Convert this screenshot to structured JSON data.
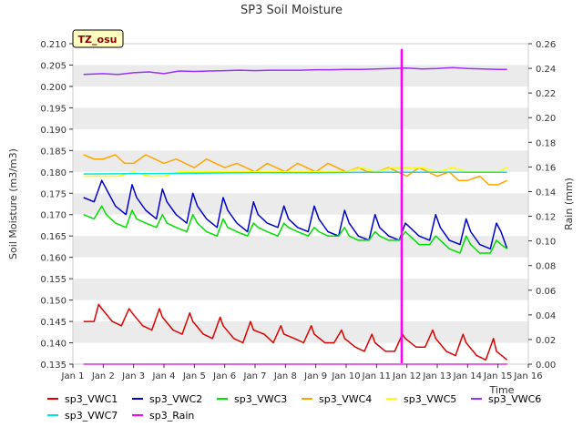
{
  "chart_data": {
    "type": "line",
    "title": "SP3 Soil Moisture",
    "xlabel": "Time",
    "ylabel": "Soil Moisture (m3/m3)",
    "y2label": "Rain (mm)",
    "site_tag": "TZ_osu",
    "xlim": [
      1,
      16
    ],
    "ylim": [
      0.135,
      0.21
    ],
    "y2lim": [
      0.0,
      0.26
    ],
    "x_tick_values": [
      1,
      2,
      3,
      4,
      5,
      6,
      7,
      8,
      9,
      10,
      11,
      12,
      13,
      14,
      15,
      16
    ],
    "x_tick_labels": [
      "Jan 1",
      "Jan 2",
      "Jan 3",
      "Jan 4",
      "Jan 5",
      "Jan 6",
      "Jan 7",
      "Jan 8",
      "Jan 9",
      "Jan 10",
      "Jan 11",
      "Jan 12",
      "Jan 13",
      "Jan 14",
      "Jan 15",
      "Jan 16"
    ],
    "y_tick_labels": [
      "0.135",
      "0.140",
      "0.145",
      "0.150",
      "0.155",
      "0.160",
      "0.165",
      "0.170",
      "0.175",
      "0.180",
      "0.185",
      "0.190",
      "0.195",
      "0.200",
      "0.205",
      "0.210"
    ],
    "y2_tick_labels": [
      "0.00",
      "0.02",
      "0.04",
      "0.06",
      "0.08",
      "0.10",
      "0.12",
      "0.14",
      "0.16",
      "0.18",
      "0.20",
      "0.22",
      "0.24",
      "0.26"
    ],
    "grid": "horizontal bands",
    "legend_position": "bottom",
    "series": [
      {
        "name": "sp3_VWC1",
        "color": "#e00000",
        "axis": "left",
        "x": [
          1.35,
          1.7,
          1.85,
          1.95,
          2.3,
          2.6,
          2.85,
          2.95,
          3.3,
          3.6,
          3.85,
          3.95,
          4.3,
          4.6,
          4.85,
          4.95,
          5.3,
          5.6,
          5.85,
          5.95,
          6.3,
          6.6,
          6.85,
          6.95,
          7.3,
          7.6,
          7.85,
          7.95,
          8.3,
          8.6,
          8.85,
          8.95,
          9.3,
          9.6,
          9.85,
          9.95,
          10.3,
          10.6,
          10.85,
          10.95,
          11.3,
          11.6,
          11.85,
          11.95,
          12.3,
          12.6,
          12.85,
          12.95,
          13.3,
          13.6,
          13.85,
          13.95,
          14.3,
          14.6,
          14.85,
          14.95,
          15.3
        ],
        "y": [
          0.145,
          0.145,
          0.149,
          0.148,
          0.145,
          0.144,
          0.148,
          0.147,
          0.144,
          0.143,
          0.148,
          0.146,
          0.143,
          0.142,
          0.147,
          0.145,
          0.142,
          0.141,
          0.146,
          0.144,
          0.141,
          0.14,
          0.145,
          0.143,
          0.142,
          0.14,
          0.144,
          0.142,
          0.141,
          0.14,
          0.144,
          0.142,
          0.14,
          0.14,
          0.143,
          0.141,
          0.139,
          0.138,
          0.142,
          0.14,
          0.138,
          0.138,
          0.142,
          0.141,
          0.139,
          0.139,
          0.143,
          0.141,
          0.138,
          0.137,
          0.142,
          0.14,
          0.137,
          0.136,
          0.141,
          0.138,
          0.136
        ]
      },
      {
        "name": "sp3_VWC2",
        "color": "#0000d0",
        "axis": "left",
        "x": [
          1.35,
          1.7,
          1.95,
          2.1,
          2.4,
          2.75,
          2.95,
          3.1,
          3.4,
          3.75,
          3.95,
          4.1,
          4.4,
          4.75,
          4.95,
          5.1,
          5.4,
          5.75,
          5.95,
          6.1,
          6.4,
          6.75,
          6.95,
          7.1,
          7.4,
          7.75,
          7.95,
          8.1,
          8.4,
          8.75,
          8.95,
          9.1,
          9.4,
          9.75,
          9.95,
          10.1,
          10.4,
          10.75,
          10.95,
          11.1,
          11.4,
          11.75,
          11.95,
          12.1,
          12.4,
          12.75,
          12.95,
          13.1,
          13.4,
          13.75,
          13.95,
          14.1,
          14.4,
          14.75,
          14.95,
          15.1,
          15.3
        ],
        "y": [
          0.174,
          0.173,
          0.178,
          0.176,
          0.172,
          0.17,
          0.177,
          0.174,
          0.171,
          0.169,
          0.176,
          0.173,
          0.17,
          0.168,
          0.175,
          0.172,
          0.169,
          0.167,
          0.174,
          0.171,
          0.168,
          0.166,
          0.173,
          0.17,
          0.168,
          0.167,
          0.172,
          0.169,
          0.167,
          0.166,
          0.172,
          0.169,
          0.166,
          0.165,
          0.171,
          0.168,
          0.165,
          0.164,
          0.17,
          0.167,
          0.165,
          0.164,
          0.168,
          0.167,
          0.165,
          0.164,
          0.17,
          0.167,
          0.164,
          0.163,
          0.169,
          0.166,
          0.163,
          0.162,
          0.168,
          0.166,
          0.162
        ]
      },
      {
        "name": "sp3_VWC3",
        "color": "#00e000",
        "axis": "left",
        "x": [
          1.35,
          1.7,
          1.95,
          2.1,
          2.4,
          2.75,
          2.95,
          3.1,
          3.4,
          3.75,
          3.95,
          4.1,
          4.4,
          4.75,
          4.95,
          5.1,
          5.4,
          5.75,
          5.95,
          6.1,
          6.4,
          6.75,
          6.95,
          7.1,
          7.4,
          7.75,
          7.95,
          8.1,
          8.4,
          8.75,
          8.95,
          9.1,
          9.4,
          9.75,
          9.95,
          10.1,
          10.4,
          10.75,
          10.95,
          11.1,
          11.4,
          11.75,
          11.95,
          12.1,
          12.4,
          12.75,
          12.95,
          13.1,
          13.4,
          13.75,
          13.95,
          14.1,
          14.4,
          14.75,
          14.95,
          15.1,
          15.3
        ],
        "y": [
          0.17,
          0.169,
          0.172,
          0.17,
          0.168,
          0.167,
          0.171,
          0.169,
          0.168,
          0.167,
          0.17,
          0.168,
          0.167,
          0.166,
          0.17,
          0.168,
          0.166,
          0.165,
          0.169,
          0.167,
          0.166,
          0.165,
          0.168,
          0.167,
          0.166,
          0.165,
          0.168,
          0.167,
          0.166,
          0.165,
          0.167,
          0.166,
          0.165,
          0.165,
          0.167,
          0.165,
          0.164,
          0.164,
          0.166,
          0.165,
          0.164,
          0.164,
          0.166,
          0.165,
          0.163,
          0.163,
          0.165,
          0.164,
          0.162,
          0.161,
          0.165,
          0.163,
          0.161,
          0.161,
          0.164,
          0.163,
          0.162
        ]
      },
      {
        "name": "sp3_VWC4",
        "color": "#ffa500",
        "axis": "left",
        "x": [
          1.35,
          1.7,
          2.0,
          2.4,
          2.7,
          3.0,
          3.4,
          3.7,
          4.0,
          4.4,
          4.7,
          5.0,
          5.4,
          5.7,
          6.0,
          6.4,
          6.7,
          7.0,
          7.4,
          7.7,
          8.0,
          8.4,
          8.7,
          9.0,
          9.4,
          9.7,
          10.0,
          10.4,
          10.7,
          11.0,
          11.4,
          11.7,
          12.0,
          12.4,
          12.7,
          13.0,
          13.4,
          13.7,
          14.0,
          14.4,
          14.7,
          15.0,
          15.3
        ],
        "y": [
          0.184,
          0.183,
          0.183,
          0.184,
          0.182,
          0.182,
          0.184,
          0.183,
          0.182,
          0.183,
          0.182,
          0.181,
          0.183,
          0.182,
          0.181,
          0.182,
          0.181,
          0.18,
          0.182,
          0.181,
          0.18,
          0.182,
          0.181,
          0.18,
          0.182,
          0.181,
          0.18,
          0.181,
          0.18,
          0.18,
          0.181,
          0.18,
          0.179,
          0.181,
          0.18,
          0.179,
          0.18,
          0.178,
          0.178,
          0.179,
          0.177,
          0.177,
          0.178
        ]
      },
      {
        "name": "sp3_VWC5",
        "color": "#ffff00",
        "axis": "left",
        "x": [
          1.35,
          2.0,
          2.5,
          3.0,
          3.5,
          4.0,
          4.5,
          5.0,
          5.5,
          6.0,
          6.5,
          7.0,
          7.5,
          8.0,
          8.5,
          9.0,
          9.5,
          10.0,
          10.5,
          11.0,
          11.5,
          12.0,
          12.5,
          13.0,
          13.5,
          14.0,
          14.5,
          15.0,
          15.3
        ],
        "y": [
          0.179,
          0.179,
          0.179,
          0.18,
          0.179,
          0.179,
          0.18,
          0.18,
          0.18,
          0.18,
          0.18,
          0.18,
          0.18,
          0.18,
          0.18,
          0.18,
          0.18,
          0.18,
          0.181,
          0.18,
          0.181,
          0.181,
          0.181,
          0.18,
          0.181,
          0.18,
          0.18,
          0.18,
          0.181
        ]
      },
      {
        "name": "sp3_VWC6",
        "color": "#9b30ff",
        "axis": "left",
        "x": [
          1.35,
          2.0,
          2.5,
          3.0,
          3.5,
          4.0,
          4.5,
          5.0,
          5.5,
          6.0,
          6.5,
          7.0,
          7.5,
          8.0,
          8.5,
          9.0,
          9.5,
          10.0,
          10.5,
          11.0,
          11.5,
          12.0,
          12.5,
          13.0,
          13.5,
          14.0,
          14.5,
          15.0,
          15.3
        ],
        "y": [
          0.2028,
          0.203,
          0.2028,
          0.2032,
          0.2034,
          0.203,
          0.2036,
          0.2035,
          0.2036,
          0.2037,
          0.2038,
          0.2037,
          0.2038,
          0.2038,
          0.2038,
          0.2039,
          0.2039,
          0.204,
          0.204,
          0.2041,
          0.2042,
          0.2043,
          0.2041,
          0.2042,
          0.2044,
          0.2042,
          0.2041,
          0.204,
          0.204
        ]
      },
      {
        "name": "sp3_VWC7",
        "color": "#00e5e5",
        "axis": "left",
        "x": [
          1.35,
          3.0,
          5.0,
          7.0,
          9.0,
          11.0,
          13.0,
          15.3
        ],
        "y": [
          0.1795,
          0.1796,
          0.1797,
          0.1798,
          0.1798,
          0.1799,
          0.1799,
          0.1799
        ]
      },
      {
        "name": "sp3_Rain",
        "color": "#ff00ff",
        "axis": "right",
        "x": [
          1.35,
          11.82,
          11.82,
          11.84,
          11.84,
          15.3
        ],
        "y": [
          0.0,
          0.0,
          0.255,
          0.255,
          0.0,
          0.0
        ]
      }
    ]
  }
}
